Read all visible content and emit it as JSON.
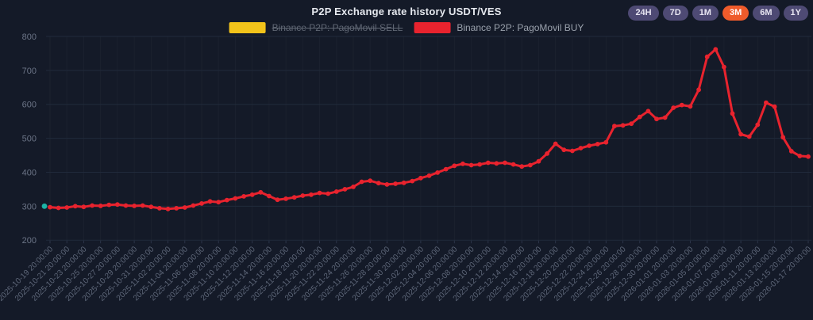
{
  "header": {
    "title": "P2P Exchange rate history USDT/VES",
    "range_buttons": [
      {
        "label": "24H",
        "active": false
      },
      {
        "label": "7D",
        "active": false
      },
      {
        "label": "1M",
        "active": false
      },
      {
        "label": "3M",
        "active": true
      },
      {
        "label": "6M",
        "active": false
      },
      {
        "label": "1Y",
        "active": false
      }
    ],
    "active_button_color": "#ef5b2b",
    "button_color": "#4e4a74"
  },
  "legend": [
    {
      "label": "Binance P2P: PagoMovil SELL",
      "color": "#f2c31a",
      "enabled": false
    },
    {
      "label": "Binance P2P: PagoMovil BUY",
      "color": "#e8232e",
      "enabled": true
    }
  ],
  "chart_data": {
    "type": "line",
    "title": "P2P Exchange rate history USDT/VES",
    "ylim": [
      200,
      800
    ],
    "y_ticks": [
      200,
      300,
      400,
      500,
      600,
      700,
      800
    ],
    "grid": true,
    "legend_position": "top",
    "x_interval": "1 day",
    "x_start": "2025-10-19 20:00:00",
    "x_end": "2026-01-17 20:00:00",
    "x_tick_labels": [
      "2025-10-19 20:00:00",
      "2025-10-21 20:00:00",
      "2025-10-23 20:00:00",
      "2025-10-25 20:00:00",
      "2025-10-27 20:00:00",
      "2025-10-29 20:00:00",
      "2025-10-31 20:00:00",
      "2025-11-02 20:00:00",
      "2025-11-04 20:00:00",
      "2025-11-06 20:00:00",
      "2025-11-08 20:00:00",
      "2025-11-10 20:00:00",
      "2025-11-12 20:00:00",
      "2025-11-14 20:00:00",
      "2025-11-16 20:00:00",
      "2025-11-18 20:00:00",
      "2025-11-20 20:00:00",
      "2025-11-22 20:00:00",
      "2025-11-24 20:00:00",
      "2025-11-26 20:00:00",
      "2025-11-28 20:00:00",
      "2025-11-30 20:00:00",
      "2025-12-02 20:00:00",
      "2025-12-04 20:00:00",
      "2025-12-06 20:00:00",
      "2025-12-08 20:00:00",
      "2025-12-10 20:00:00",
      "2025-12-12 20:00:00",
      "2025-12-14 20:00:00",
      "2025-12-16 20:00:00",
      "2025-12-18 20:00:00",
      "2025-12-20 20:00:00",
      "2025-12-22 20:00:00",
      "2025-12-24 20:00:00",
      "2025-12-26 20:00:00",
      "2025-12-28 20:00:00",
      "2025-12-30 20:00:00",
      "2026-01-01 20:00:00",
      "2026-01-03 20:00:00",
      "2026-01-05 20:00:00",
      "2026-01-07 20:00:00",
      "2026-01-09 20:00:00",
      "2026-01-11 20:00:00",
      "2026-01-13 20:00:00",
      "2026-01-15 20:00:00",
      "2026-01-17 20:00:00"
    ],
    "series": [
      {
        "name": "Binance P2P: PagoMovil BUY",
        "color": "#e8232e",
        "visible": true,
        "values": [
          297,
          295,
          296,
          300,
          298,
          302,
          301,
          304,
          305,
          302,
          301,
          302,
          298,
          294,
          292,
          294,
          296,
          302,
          308,
          314,
          312,
          318,
          323,
          329,
          334,
          341,
          330,
          319,
          322,
          326,
          331,
          334,
          339,
          337,
          343,
          350,
          357,
          372,
          375,
          368,
          364,
          366,
          369,
          374,
          383,
          390,
          399,
          409,
          419,
          425,
          421,
          423,
          428,
          426,
          428,
          423,
          417,
          421,
          432,
          455,
          484,
          466,
          463,
          471,
          478,
          483,
          488,
          536,
          538,
          543,
          563,
          580,
          557,
          561,
          590,
          598,
          594,
          643,
          740,
          762,
          710,
          573,
          512,
          505,
          540,
          605,
          593,
          503,
          462,
          448,
          446
        ]
      },
      {
        "name": "Binance P2P: PagoMovil SELL",
        "color": "#f2c31a",
        "visible": false
      }
    ]
  },
  "style": {
    "background": "#141a28",
    "grid_color": "#202a3b",
    "axis_label_color": "#6b7486",
    "x_label_color": "#5d6678",
    "marker_teal": "#1db2a5"
  }
}
